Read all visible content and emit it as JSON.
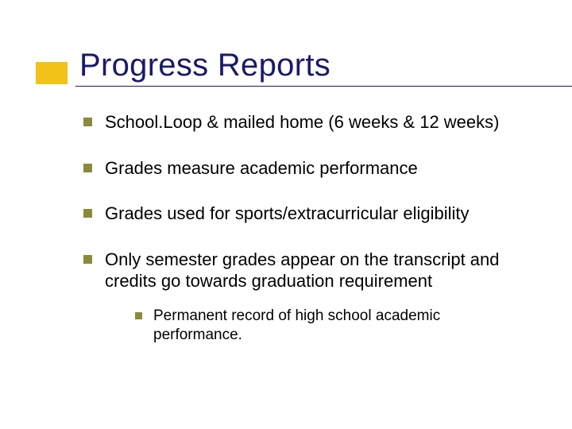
{
  "slide": {
    "title": "Progress Reports",
    "title_color": "#1a1a6a",
    "title_fontsize": 40,
    "accent_box_color": "#f2c218",
    "bullet_color": "#8a8a3a",
    "body_fontsize": 22,
    "sub_fontsize": 19,
    "background_color": "#ffffff",
    "bullets": [
      {
        "text": "School.Loop & mailed home (6 weeks & 12 weeks)"
      },
      {
        "text": "Grades measure academic performance"
      },
      {
        "text": "Grades used for sports/extracurricular eligibility"
      },
      {
        "text": "Only semester grades appear on the transcript and credits go towards graduation requirement",
        "sub": [
          {
            "text": "Permanent record of high school academic performance."
          }
        ]
      }
    ]
  }
}
